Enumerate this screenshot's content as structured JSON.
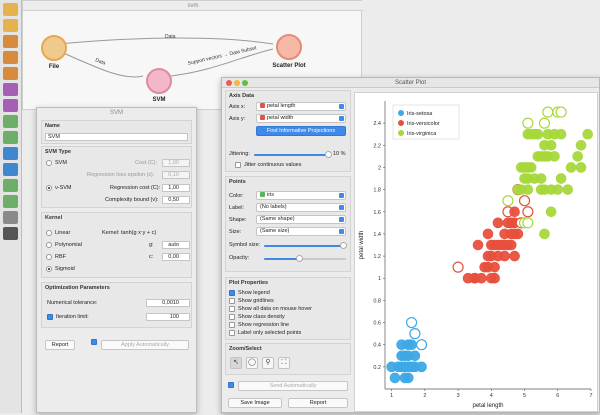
{
  "canvas": {
    "title": "svm",
    "nodes": {
      "file": "File",
      "svm": "SVM",
      "scatter": "Scatter Plot"
    },
    "links": {
      "top": "Data",
      "file_svm": "Data",
      "svm_scatter": "Support vectors → Data Subset"
    }
  },
  "svm": {
    "title": "SVM",
    "name_section": "Name",
    "name_value": "SVM",
    "type_section": "SVM Type",
    "svm_label": "SVM",
    "cost_label": "Cost (C):",
    "cost1_value": "1,00",
    "epsilon_label": "Regression loss epsilon (ε):",
    "epsilon_value": "0,10",
    "nusvm_label": "ν-SVM",
    "reg_cost_label": "Regression cost (C):",
    "reg_cost_value": "1,00",
    "complexity_label": "Complexity bound (ν):",
    "complexity_value": "0,50",
    "kernel_section": "Kernel",
    "kernel_formula": "Kernel: tanh(g x⋅y + c)",
    "linear": "Linear",
    "polynomial": "Polynomial",
    "rbf": "RBF",
    "sigmoid": "Sigmoid",
    "g_label": "g:",
    "g_value": "auto",
    "c_label": "c:",
    "c_value": "0,00",
    "opt_section": "Optimization Parameters",
    "tolerance_label": "Numerical tolerance:",
    "tolerance_value": "0,0010",
    "iteration_label": "Iteration limit:",
    "iteration_value": "100",
    "report": "Report",
    "apply_auto": "Apply Automatically"
  },
  "scatter": {
    "title": "Scatter Plot",
    "axis_section": "Axis Data",
    "axis_x_label": "Axis x:",
    "axis_x_value": "petal length",
    "axis_y_label": "Axis y:",
    "axis_y_value": "petal width",
    "find_btn": "Find Informative Projections",
    "jittering_label": "Jittering:",
    "jittering_value": "10 %",
    "jitter_cont": "Jitter continuous values",
    "points_section": "Points",
    "color_label": "Color:",
    "color_value": "iris",
    "label_label": "Label:",
    "label_value": "(No labels)",
    "shape_label": "Shape:",
    "shape_value": "(Same shape)",
    "size_label": "Size:",
    "size_value": "(Same size)",
    "symbol_label": "Symbol size:",
    "opacity_label": "Opacity:",
    "plot_props_section": "Plot Properties",
    "opt_legend": "Show legend",
    "opt_gridlines": "Show gridlines",
    "opt_all_data": "Show all data on mouse hover",
    "opt_density": "Show class density",
    "opt_regression": "Show regression line",
    "opt_label_selected": "Label only selected points",
    "zoom_section": "Zoom/Select",
    "send_auto": "Send Automatically",
    "save_image": "Save Image",
    "report": "Report"
  },
  "chart_data": {
    "type": "scatter",
    "xlabel": "petal length",
    "ylabel": "petal width",
    "xlim": [
      0.8,
      7.0
    ],
    "ylim": [
      0.0,
      2.6
    ],
    "xticks": [
      1,
      2,
      3,
      4,
      5,
      6,
      7
    ],
    "yticks": [
      0.2,
      0.4,
      0.6,
      0.8,
      1,
      1.2,
      1.4,
      1.6,
      1.8,
      2,
      2.2,
      2.4
    ],
    "legend_placement": "top-left",
    "series": [
      {
        "name": "Iris-setosa",
        "color": "#3ea8e5",
        "points": [
          [
            1.0,
            0.2
          ],
          [
            1.1,
            0.1
          ],
          [
            1.2,
            0.2
          ],
          [
            1.3,
            0.2
          ],
          [
            1.4,
            0.2
          ],
          [
            1.5,
            0.2
          ],
          [
            1.6,
            0.2
          ],
          [
            1.7,
            0.2
          ],
          [
            1.9,
            0.2
          ],
          [
            1.3,
            0.3
          ],
          [
            1.4,
            0.3
          ],
          [
            1.5,
            0.3
          ],
          [
            1.7,
            0.3
          ],
          [
            1.3,
            0.4
          ],
          [
            1.5,
            0.4
          ],
          [
            1.6,
            0.4
          ],
          [
            1.9,
            0.4
          ],
          [
            1.7,
            0.5
          ],
          [
            1.6,
            0.6
          ],
          [
            1.4,
            0.1
          ],
          [
            1.5,
            0.1
          ]
        ],
        "support_vectors": [
          [
            1.9,
            0.4
          ],
          [
            1.7,
            0.5
          ],
          [
            1.6,
            0.6
          ]
        ]
      },
      {
        "name": "Iris-versicolor",
        "color": "#e8503e",
        "points": [
          [
            3.0,
            1.1
          ],
          [
            3.3,
            1.0
          ],
          [
            3.5,
            1.0
          ],
          [
            3.6,
            1.3
          ],
          [
            3.7,
            1.0
          ],
          [
            3.8,
            1.1
          ],
          [
            3.9,
            1.1
          ],
          [
            3.9,
            1.2
          ],
          [
            3.9,
            1.4
          ],
          [
            4.0,
            1.0
          ],
          [
            4.0,
            1.2
          ],
          [
            4.0,
            1.3
          ],
          [
            4.1,
            1.0
          ],
          [
            4.1,
            1.3
          ],
          [
            4.2,
            1.2
          ],
          [
            4.2,
            1.3
          ],
          [
            4.2,
            1.5
          ],
          [
            4.3,
            1.3
          ],
          [
            4.4,
            1.2
          ],
          [
            4.4,
            1.3
          ],
          [
            4.4,
            1.4
          ],
          [
            4.5,
            1.3
          ],
          [
            4.5,
            1.5
          ],
          [
            4.5,
            1.6
          ],
          [
            4.6,
            1.3
          ],
          [
            4.6,
            1.4
          ],
          [
            4.6,
            1.5
          ],
          [
            4.7,
            1.2
          ],
          [
            4.7,
            1.4
          ],
          [
            4.7,
            1.5
          ],
          [
            4.7,
            1.6
          ],
          [
            4.8,
            1.4
          ],
          [
            4.8,
            1.8
          ],
          [
            4.9,
            1.5
          ],
          [
            5.0,
            1.7
          ],
          [
            5.1,
            1.6
          ],
          [
            4.1,
            1.1
          ],
          [
            3.5,
            1.0
          ]
        ],
        "support_vectors": [
          [
            4.8,
            1.8
          ],
          [
            5.0,
            1.7
          ],
          [
            5.1,
            1.6
          ],
          [
            4.5,
            1.6
          ],
          [
            4.9,
            1.5
          ],
          [
            3.0,
            1.1
          ]
        ]
      },
      {
        "name": "Iris-virginica",
        "color": "#a6d83a",
        "points": [
          [
            4.5,
            1.7
          ],
          [
            4.8,
            1.8
          ],
          [
            4.9,
            1.8
          ],
          [
            5.0,
            1.5
          ],
          [
            5.0,
            1.9
          ],
          [
            5.0,
            2.0
          ],
          [
            5.1,
            1.5
          ],
          [
            5.1,
            1.8
          ],
          [
            5.1,
            1.9
          ],
          [
            5.1,
            2.0
          ],
          [
            5.1,
            2.3
          ],
          [
            5.1,
            2.4
          ],
          [
            5.2,
            2.0
          ],
          [
            5.2,
            2.3
          ],
          [
            5.3,
            1.9
          ],
          [
            5.3,
            2.3
          ],
          [
            5.4,
            2.1
          ],
          [
            5.4,
            2.3
          ],
          [
            5.5,
            1.8
          ],
          [
            5.5,
            2.1
          ],
          [
            5.6,
            1.4
          ],
          [
            5.6,
            1.8
          ],
          [
            5.6,
            2.1
          ],
          [
            5.6,
            2.2
          ],
          [
            5.6,
            2.4
          ],
          [
            5.7,
            2.1
          ],
          [
            5.7,
            2.3
          ],
          [
            5.7,
            2.5
          ],
          [
            5.8,
            1.6
          ],
          [
            5.8,
            1.8
          ],
          [
            5.8,
            2.2
          ],
          [
            5.9,
            2.1
          ],
          [
            5.9,
            2.3
          ],
          [
            6.0,
            1.8
          ],
          [
            6.0,
            2.5
          ],
          [
            6.1,
            1.9
          ],
          [
            6.1,
            2.3
          ],
          [
            6.1,
            2.5
          ],
          [
            6.3,
            1.8
          ],
          [
            6.4,
            2.0
          ],
          [
            6.6,
            2.1
          ],
          [
            6.7,
            2.0
          ],
          [
            6.7,
            2.2
          ],
          [
            6.9,
            2.3
          ],
          [
            4.9,
            2.0
          ],
          [
            5.5,
            1.9
          ]
        ],
        "support_vectors": [
          [
            5.7,
            2.5
          ],
          [
            6.0,
            2.5
          ],
          [
            6.1,
            2.5
          ],
          [
            5.1,
            2.4
          ],
          [
            5.6,
            2.4
          ],
          [
            5.0,
            1.5
          ],
          [
            5.1,
            1.5
          ],
          [
            4.5,
            1.7
          ]
        ]
      }
    ]
  }
}
